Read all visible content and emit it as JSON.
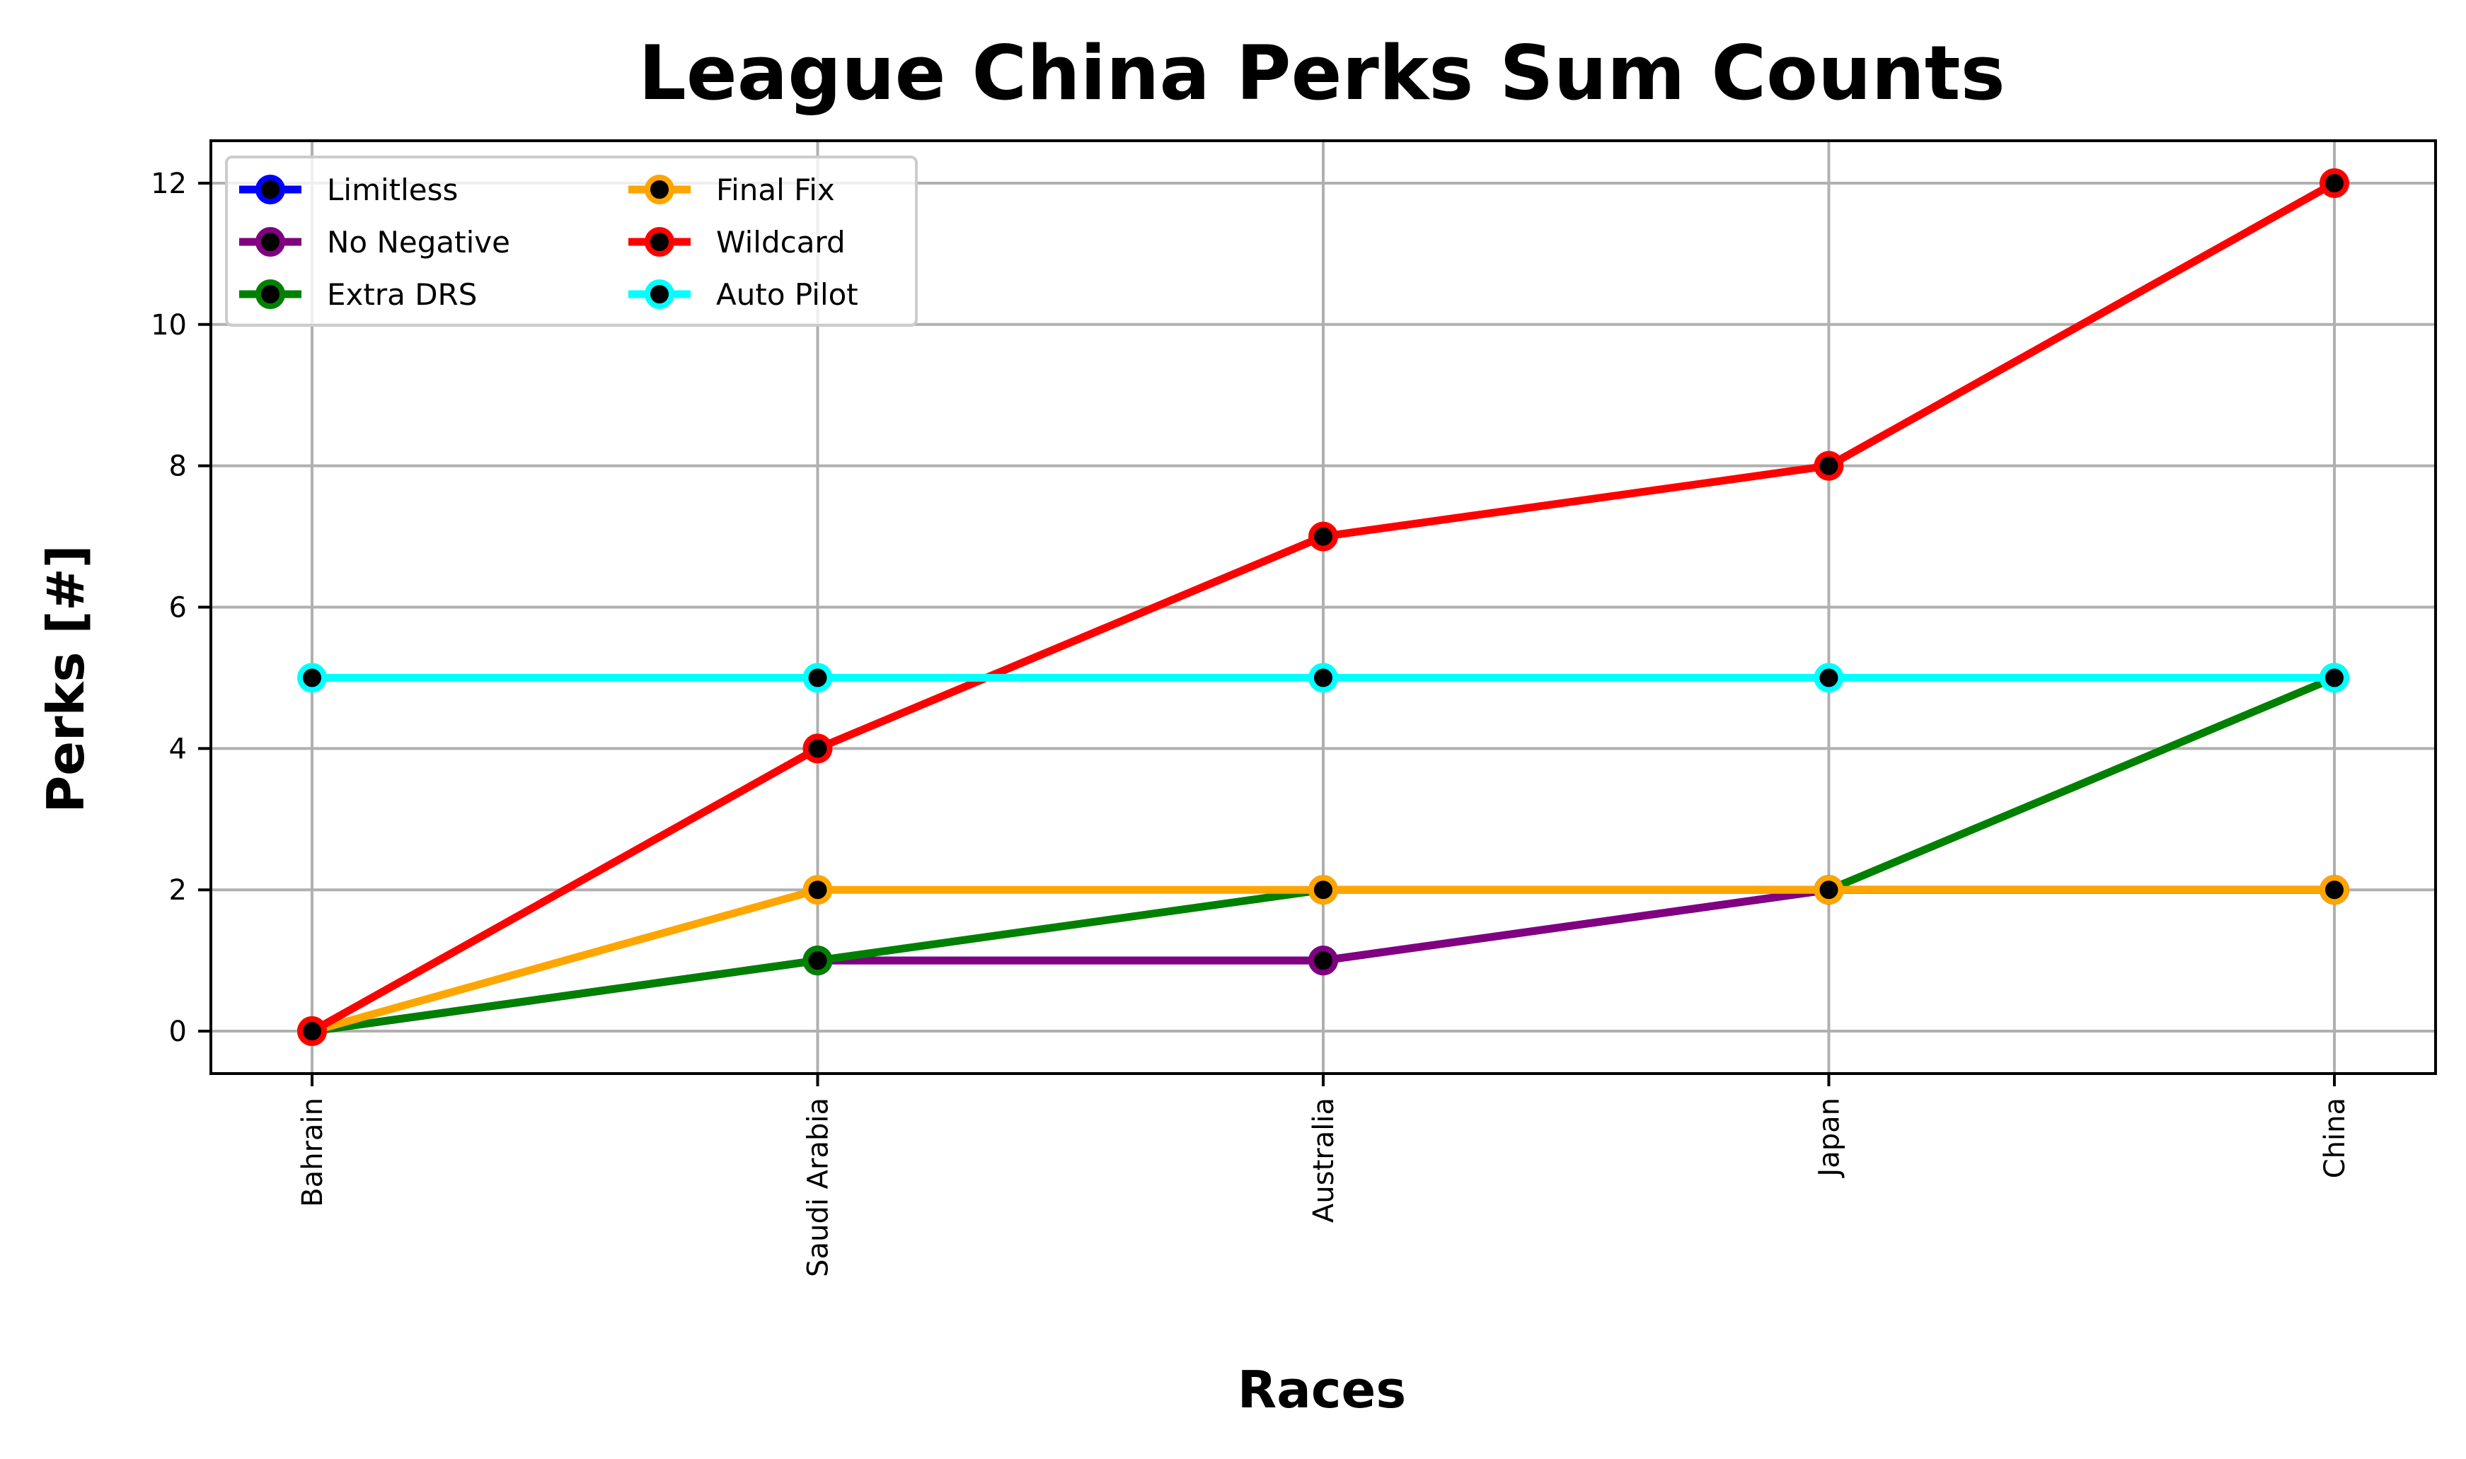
{
  "chart_data": {
    "type": "line",
    "title": "League China Perks Sum Counts",
    "xlabel": "Races",
    "ylabel": "Perks [#]",
    "categories": [
      "Bahrain",
      "Saudi Arabia",
      "Australia",
      "Japan",
      "China"
    ],
    "ylim": [
      -0.6,
      12.6
    ],
    "yticks": [
      0,
      2,
      4,
      6,
      8,
      10,
      12
    ],
    "grid": true,
    "legend_position": "top-left",
    "legend_columns": 2,
    "series": [
      {
        "name": "Limitless",
        "color": "#0000ff",
        "values": [
          0,
          1,
          1,
          2,
          2
        ]
      },
      {
        "name": "No Negative",
        "color": "#800080",
        "values": [
          0,
          1,
          1,
          2,
          2
        ]
      },
      {
        "name": "Extra DRS",
        "color": "#008000",
        "values": [
          0,
          1,
          2,
          2,
          5
        ]
      },
      {
        "name": "Final Fix",
        "color": "#ffa500",
        "values": [
          0,
          2,
          2,
          2,
          2
        ]
      },
      {
        "name": "Wildcard",
        "color": "#ff0000",
        "values": [
          0,
          4,
          7,
          8,
          12
        ]
      },
      {
        "name": "Auto Pilot",
        "color": "#00ffff",
        "values": [
          5,
          5,
          5,
          5,
          5
        ]
      }
    ],
    "marker_center_color": "#000000"
  }
}
